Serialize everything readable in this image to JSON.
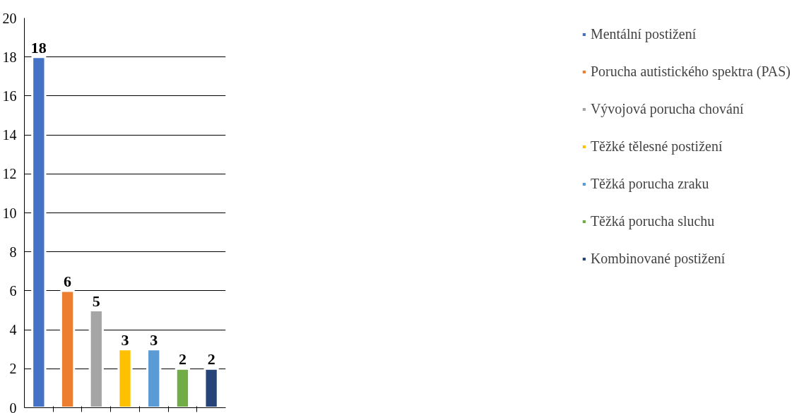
{
  "chart_data": {
    "type": "bar",
    "categories": [
      null,
      null,
      null,
      null,
      null,
      null,
      null
    ],
    "series": [
      {
        "name": "Mentální postižení",
        "color": "#4472c4",
        "values": [
          18,
          null,
          null,
          null,
          null,
          null,
          null
        ]
      },
      {
        "name": "Porucha autistického spektra (PAS)",
        "color": "#ed7d31",
        "values": [
          null,
          6,
          null,
          null,
          null,
          null,
          null
        ]
      },
      {
        "name": "Vývojová porucha chování",
        "color": "#a5a5a5",
        "values": [
          null,
          null,
          5,
          null,
          null,
          null,
          null
        ]
      },
      {
        "name": "Těžké tělesné postižení",
        "color": "#ffc000",
        "values": [
          null,
          null,
          null,
          3,
          null,
          null,
          null
        ]
      },
      {
        "name": "Těžká porucha zraku",
        "color": "#5b9bd5",
        "values": [
          null,
          null,
          null,
          null,
          3,
          null,
          null
        ]
      },
      {
        "name": "Těžká porucha sluchu",
        "color": "#70ad47",
        "values": [
          null,
          null,
          null,
          null,
          null,
          2,
          null
        ]
      },
      {
        "name": "Kombinované postižení",
        "color": "#264478",
        "values": [
          null,
          null,
          null,
          null,
          null,
          null,
          2
        ]
      }
    ],
    "ylim": [
      0,
      20
    ],
    "yticks": [
      0,
      2,
      4,
      6,
      8,
      10,
      12,
      14,
      16,
      18,
      20
    ],
    "grid": "y",
    "legend": "right",
    "data_labels": true
  }
}
